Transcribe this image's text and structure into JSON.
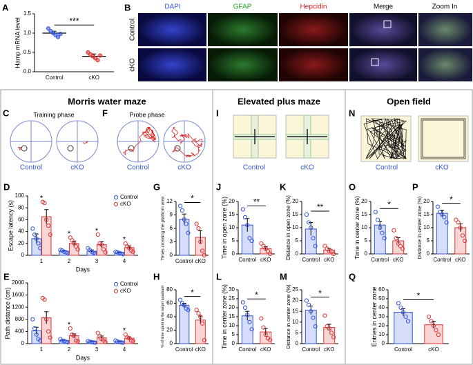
{
  "sections": [
    "Morris water maze",
    "Elevated plus maze",
    "Open field"
  ],
  "panels": {
    "B": {
      "label": "B",
      "channels": [
        "DAPI",
        "GFAP",
        "Hepcidin",
        "Merge",
        "Zoom In"
      ],
      "rows": [
        "Control",
        "cKO"
      ]
    },
    "C": {
      "label": "C",
      "title": "Training phase",
      "captions": [
        "Control",
        "cKO"
      ]
    },
    "F": {
      "label": "F",
      "title": "Probe phase",
      "captions": [
        "Control",
        "cKO"
      ]
    },
    "I": {
      "label": "I",
      "captions": [
        "Control",
        "cKO"
      ]
    },
    "N": {
      "label": "N",
      "captions": [
        "Control",
        "cKO"
      ]
    }
  },
  "chart_data": [
    {
      "type": "dot",
      "label": "A",
      "ylabel": "Hamp mRNA level",
      "categories": [
        "Control",
        "cKO"
      ],
      "colors": [
        "#3355dd",
        "#dd3333"
      ],
      "values": [
        1.0,
        0.4
      ],
      "errors": [
        0.05,
        0.06
      ],
      "points": [
        [
          1.12,
          1.05,
          1.0,
          0.95,
          0.9,
          0.98
        ],
        [
          0.5,
          0.45,
          0.4,
          0.35,
          0.3,
          0.42
        ]
      ],
      "ylim": [
        0,
        1.5
      ],
      "yticks": [
        {
          "value": 0,
          "label": "0.0"
        },
        0.5,
        {
          "value": 1,
          "label": "1.0"
        },
        1.5
      ],
      "significance": "***"
    },
    {
      "type": "bar",
      "label": "D",
      "ylabel": "Escape latency (s)",
      "xlabel": "Days",
      "categories": [
        "1",
        "2",
        "3",
        "4"
      ],
      "series": [
        {
          "name": "Control",
          "color": "#3355dd",
          "values": [
            28,
            7,
            7,
            4
          ],
          "errors": [
            8,
            1,
            2,
            1
          ],
          "points": [
            [
              45,
              35,
              28,
              20,
              12
            ],
            [
              9,
              8,
              6,
              5,
              4
            ],
            [
              12,
              9,
              6,
              4,
              3
            ],
            [
              6,
              5,
              4,
              3,
              2
            ]
          ]
        },
        {
          "name": "cKO",
          "color": "#dd3333",
          "values": [
            65,
            20,
            18,
            13
          ],
          "errors": [
            12,
            4,
            5,
            3
          ],
          "points": [
            [
              90,
              88,
              60,
              50,
              35
            ],
            [
              30,
              25,
              20,
              15,
              10
            ],
            [
              35,
              20,
              18,
              10,
              5
            ],
            [
              20,
              15,
              12,
              8,
              6
            ]
          ]
        }
      ],
      "ylim": [
        0,
        100
      ],
      "yticks": [
        0,
        20,
        40,
        60,
        80,
        100
      ],
      "stars": [
        "*",
        "*",
        "*",
        "*"
      ]
    },
    {
      "type": "bar",
      "label": "G",
      "ylabel": "Times crossing the platform area",
      "categories": [
        "Control",
        "cKO"
      ],
      "colors": [
        "#3355dd",
        "#dd3333"
      ],
      "values": [
        8,
        4
      ],
      "errors": [
        1.2,
        1.5
      ],
      "points": [
        [
          11,
          10,
          8,
          7,
          5
        ],
        [
          7,
          6,
          3,
          1,
          0
        ]
      ],
      "ylim": [
        0,
        12
      ],
      "yticks": [
        0,
        3,
        6,
        9,
        12
      ],
      "significance": "*"
    },
    {
      "type": "bar",
      "label": "E",
      "ylabel": "Path distance (cm)",
      "xlabel": "Days",
      "categories": [
        "1",
        "2",
        "3",
        "4"
      ],
      "series": [
        {
          "name": "Control",
          "color": "#3355dd",
          "values": [
            420,
            100,
            60,
            60
          ],
          "errors": [
            120,
            20,
            10,
            10
          ],
          "points": [
            [
              800,
              500,
              300,
              150,
              100
            ],
            [
              150,
              100,
              80,
              60,
              40
            ],
            [
              80,
              60,
              50,
              40,
              30
            ],
            [
              100,
              70,
              50,
              40,
              30
            ]
          ]
        },
        {
          "name": "cKO",
          "color": "#dd3333",
          "values": [
            850,
            260,
            190,
            180
          ],
          "errors": [
            200,
            60,
            60,
            40
          ],
          "points": [
            [
              1500,
              1450,
              800,
              400,
              200
            ],
            [
              500,
              300,
              250,
              100,
              80
            ],
            [
              350,
              250,
              150,
              100,
              50
            ],
            [
              300,
              200,
              180,
              100,
              80
            ]
          ]
        }
      ],
      "ylim": [
        0,
        2000
      ],
      "yticks": [
        0,
        400,
        800,
        1200,
        1600,
        2000
      ],
      "stars": [
        null,
        "*",
        null,
        "*"
      ]
    },
    {
      "type": "bar",
      "label": "H",
      "ylabel": "% of time spent in the target quadrant",
      "categories": [
        "Control",
        "cKO"
      ],
      "colors": [
        "#3355dd",
        "#dd3333"
      ],
      "values": [
        57,
        35
      ],
      "errors": [
        3,
        6
      ],
      "points": [
        [
          65,
          60,
          57,
          52,
          50
        ],
        [
          50,
          45,
          40,
          30,
          5
        ]
      ],
      "ylim": [
        0,
        80
      ],
      "yticks": [
        0,
        20,
        40,
        60,
        80
      ],
      "significance": "*"
    },
    {
      "type": "bar",
      "label": "J",
      "ylabel": "Time in open zone (%)",
      "categories": [
        "Control",
        "cKO"
      ],
      "colors": [
        "#3355dd",
        "#dd3333"
      ],
      "values": [
        11,
        2
      ],
      "errors": [
        2.5,
        0.8
      ],
      "points": [
        [
          17,
          14,
          11,
          6,
          5
        ],
        [
          4,
          3,
          2,
          1,
          0
        ]
      ],
      "ylim": [
        0,
        20
      ],
      "yticks": [
        0,
        5,
        10,
        15,
        20
      ],
      "significance": "**"
    },
    {
      "type": "bar",
      "label": "K",
      "ylabel": "Distance in open zone (%)",
      "categories": [
        "Control",
        "cKO"
      ],
      "colors": [
        "#3355dd",
        "#dd3333"
      ],
      "values": [
        9.5,
        1.5
      ],
      "errors": [
        2.5,
        0.6
      ],
      "points": [
        [
          15,
          12,
          10,
          6,
          3
        ],
        [
          3,
          2,
          1,
          1,
          0
        ]
      ],
      "ylim": [
        0,
        20
      ],
      "yticks": [
        0,
        5,
        10,
        15,
        20
      ],
      "significance": "**"
    },
    {
      "type": "bar",
      "label": "L",
      "ylabel": "Time in center zone (%)",
      "categories": [
        "Control",
        "cKO"
      ],
      "colors": [
        "#3355dd",
        "#dd3333"
      ],
      "values": [
        15.5,
        6.5
      ],
      "errors": [
        2.5,
        2
      ],
      "points": [
        [
          23,
          20,
          16,
          12,
          8
        ],
        [
          14,
          9,
          5,
          3,
          2
        ]
      ],
      "ylim": [
        0,
        30
      ],
      "yticks": [
        0,
        5,
        10,
        15,
        20,
        25,
        30
      ],
      "significance": "*"
    },
    {
      "type": "bar",
      "label": "M",
      "ylabel": "Distance in center zone (%)",
      "categories": [
        "Control",
        "cKO"
      ],
      "colors": [
        "#3355dd",
        "#dd3333"
      ],
      "values": [
        15.5,
        7.5
      ],
      "errors": [
        2,
        1.5
      ],
      "points": [
        [
          20,
          18,
          15,
          12,
          8
        ],
        [
          13,
          8,
          7,
          5,
          3
        ]
      ],
      "ylim": [
        0,
        25
      ],
      "yticks": [
        0,
        5,
        10,
        15,
        20,
        25
      ],
      "significance": "*"
    },
    {
      "type": "bar",
      "label": "O",
      "ylabel": "Time in center zone (%)",
      "categories": [
        "Control",
        "cKO"
      ],
      "colors": [
        "#3355dd",
        "#dd3333"
      ],
      "values": [
        11,
        5
      ],
      "errors": [
        1.5,
        1.2
      ],
      "points": [
        [
          16,
          13,
          10,
          8,
          6
        ],
        [
          9,
          6,
          4,
          3,
          2
        ]
      ],
      "ylim": [
        0,
        20
      ],
      "yticks": [
        0,
        5,
        10,
        15,
        20
      ],
      "significance": "*"
    },
    {
      "type": "bar",
      "label": "P",
      "ylabel": "Distance in center zone (%)",
      "categories": [
        "Control",
        "cKO"
      ],
      "colors": [
        "#3355dd",
        "#dd3333"
      ],
      "values": [
        15.5,
        10
      ],
      "errors": [
        1.2,
        1.5
      ],
      "points": [
        [
          18,
          16,
          15,
          14,
          12
        ],
        [
          13,
          12,
          10,
          7,
          5
        ]
      ],
      "ylim": [
        0,
        20
      ],
      "yticks": [
        0,
        5,
        10,
        15,
        20
      ],
      "significance": "*"
    },
    {
      "type": "bar",
      "label": "Q",
      "ylabel": "Entries in center zone",
      "categories": [
        "Control",
        "cKO"
      ],
      "colors": [
        "#3355dd",
        "#dd3333"
      ],
      "values": [
        35,
        21
      ],
      "errors": [
        4,
        4
      ],
      "points": [
        [
          45,
          40,
          35,
          30,
          25
        ],
        [
          30,
          25,
          20,
          15,
          10
        ]
      ],
      "ylim": [
        0,
        60
      ],
      "yticks": [
        0,
        10,
        20,
        30,
        40,
        50,
        60
      ],
      "significance": "*"
    }
  ]
}
